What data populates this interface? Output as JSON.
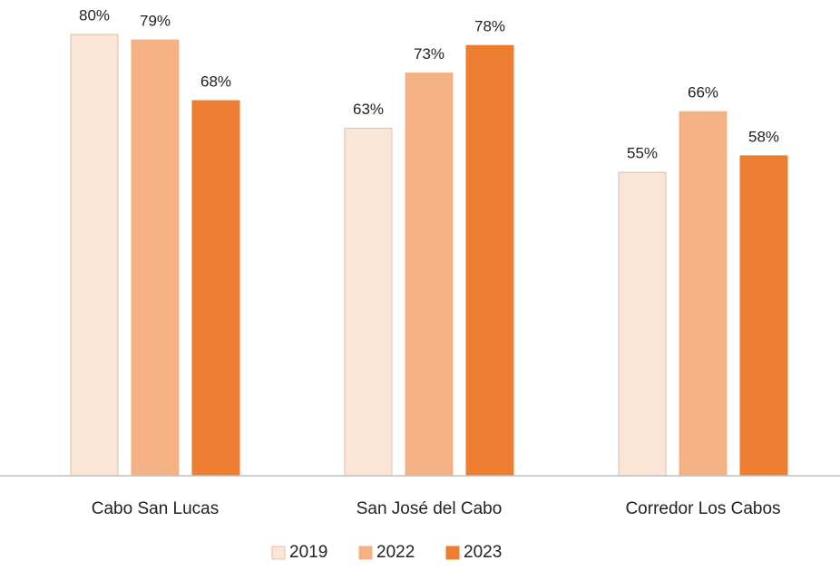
{
  "chart_data": {
    "type": "bar",
    "categories": [
      "Cabo San Lucas",
      "San José del Cabo",
      "Corredor Los Cabos"
    ],
    "series": [
      {
        "name": "2019",
        "color": "#fbe5d6",
        "values": [
          80,
          63,
          55
        ],
        "value_labels": [
          "80%",
          "63%",
          "55%"
        ]
      },
      {
        "name": "2022",
        "color": "#f4b183",
        "values": [
          79,
          73,
          66
        ],
        "value_labels": [
          "79%",
          "73%",
          "66%"
        ]
      },
      {
        "name": "2023",
        "color": "#ed7d31",
        "values": [
          68,
          78,
          58
        ],
        "value_labels": [
          "68%",
          "78%",
          "58%"
        ]
      }
    ],
    "ylim": [
      0,
      80
    ],
    "legend": "bottom"
  }
}
